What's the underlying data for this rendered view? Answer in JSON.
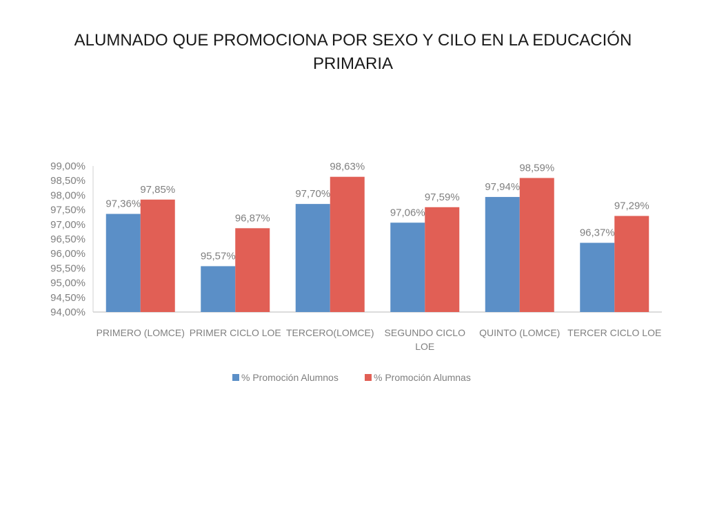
{
  "slide": {
    "title": "ALUMNADO QUE PROMOCIONA POR SEXO Y CILO EN LA EDUCACIÓN PRIMARIA"
  },
  "chart_data": {
    "type": "bar",
    "title": "",
    "xlabel": "",
    "ylabel": "",
    "categories": [
      [
        "PRIMERO (LOMCE)"
      ],
      [
        "PRIMER CICLO LOE"
      ],
      [
        "TERCERO(LOMCE)"
      ],
      [
        "SEGUNDO CICLO",
        "LOE"
      ],
      [
        "QUINTO (LOMCE)"
      ],
      [
        "TERCER CICLO LOE"
      ]
    ],
    "series": [
      {
        "name": "% Promoción Alumnos",
        "color": "#5b8fc7",
        "values": [
          97.36,
          95.57,
          97.7,
          97.06,
          97.94,
          96.37
        ],
        "labels": [
          "97,36%",
          "95,57%",
          "97,70%",
          "97,06%",
          "97,94%",
          "96,37%"
        ]
      },
      {
        "name": "% Promoción Alumnas",
        "color": "#e15f55",
        "values": [
          97.85,
          96.87,
          98.63,
          97.59,
          98.59,
          97.29
        ],
        "labels": [
          "97,85%",
          "96,87%",
          "98,63%",
          "97,59%",
          "98,59%",
          "97,29%"
        ]
      }
    ],
    "ylim": [
      94,
      99
    ],
    "yticks": [
      94,
      94.5,
      95,
      95.5,
      96,
      96.5,
      97,
      97.5,
      98,
      98.5,
      99
    ],
    "ytick_labels": [
      "94,00%",
      "94,50%",
      "95,00%",
      "95,50%",
      "96,00%",
      "96,50%",
      "97,00%",
      "97,50%",
      "98,00%",
      "98,50%",
      "99,00%"
    ],
    "grid": false,
    "legend_position": "bottom"
  }
}
